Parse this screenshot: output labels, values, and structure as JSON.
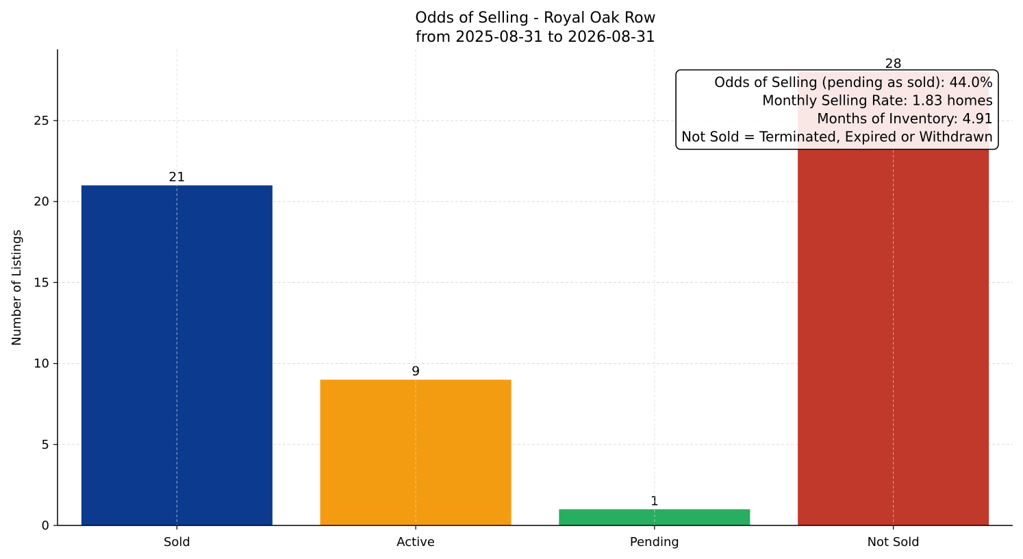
{
  "chart_data": {
    "type": "bar",
    "title": "Odds of Selling - Royal Oak Row",
    "subtitle": "from 2025-08-31 to 2026-08-31",
    "xlabel": "",
    "ylabel": "Number of Listings",
    "categories": [
      "Sold",
      "Active",
      "Pending",
      "Not Sold"
    ],
    "values": [
      21,
      9,
      1,
      28
    ],
    "colors": [
      "#0b3a8f",
      "#f39c12",
      "#27ae60",
      "#c0392b"
    ],
    "ylim": [
      0,
      29.4
    ],
    "yticks": [
      0,
      5,
      10,
      15,
      20,
      25
    ],
    "grid": true,
    "annotation": {
      "placement": "top-right",
      "lines": [
        "Odds of Selling (pending as sold): 44.0%",
        "Monthly Selling Rate: 1.83 homes",
        "Months of Inventory: 4.91",
        "Not Sold = Terminated, Expired or Withdrawn"
      ]
    }
  }
}
